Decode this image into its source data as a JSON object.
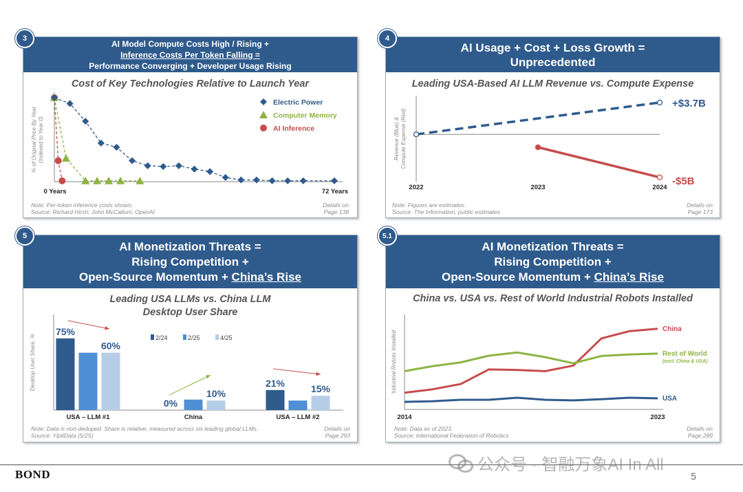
{
  "panels": {
    "p3": {
      "badge": "3",
      "header_lines": [
        "AI Model Compute Costs High / Rising +",
        "Inference Costs Per Token Falling =",
        "Performance Converging + Developer Usage Rising"
      ],
      "subtitle": "Cost of Key Technologies Relative to Launch Year",
      "note_lines": [
        "Note: Per-token inference costs shown.",
        "Source: Richard Hirsh; John McCallum; OpenAI"
      ],
      "details_lines": [
        "Details on",
        "Page 138"
      ]
    },
    "p4": {
      "badge": "4",
      "header_lines": [
        "AI Usage + Cost + Loss Growth =",
        "Unprecedented"
      ],
      "subtitle": "Leading USA-Based AI LLM Revenue vs. Compute Expense",
      "note_lines": [
        "Note: Figures are estimates.",
        "Source: The Information, public estimates"
      ],
      "details_lines": [
        "Details on",
        "Page 173"
      ]
    },
    "p5": {
      "badge": "5",
      "header_lines": [
        "AI Monetization Threats =",
        "Rising Competition +",
        "Open-Source Momentum + ",
        "China’s Rise"
      ],
      "subtitle_lines": [
        "Leading USA LLMs vs. China LLM",
        "Desktop User Share"
      ],
      "note_lines": [
        "Note: Data is non-deduped. Share is relative, measured across six leading global LLMs.",
        "Source: YipitData (5/25)"
      ],
      "details_lines": [
        "Details on",
        "Page 293"
      ]
    },
    "p51": {
      "badge": "5.1",
      "header_lines": [
        "AI Monetization Threats =",
        "Rising Competition +",
        "Open-Source Momentum + ",
        "China’s Rise"
      ],
      "subtitle": "China vs. USA vs. Rest of World Industrial Robots Installed",
      "note_lines": [
        "Note: Data as of 2023.",
        "Source: International Federation of Robotics"
      ],
      "details_lines": [
        "Details on",
        "Page 289"
      ]
    }
  },
  "chart_data": [
    {
      "type": "scatter",
      "title": "Cost of Key Technologies Relative to Launch Year",
      "ylabel": "% of Original Price By Year (Indexed to Year 0)",
      "x_tick_labels": [
        "0 Years",
        "72 Years"
      ],
      "xlim": [
        0,
        72
      ],
      "ylim": [
        0,
        100
      ],
      "series": [
        {
          "name": "Electric Power",
          "color": "#2f5b8c",
          "marker": "diamond",
          "x": [
            0,
            4,
            8,
            12,
            16,
            20,
            24,
            28,
            32,
            36,
            40,
            44,
            48,
            52,
            56,
            60,
            64,
            72
          ],
          "y": [
            100,
            93,
            72,
            46,
            41,
            25,
            19,
            18,
            19,
            15,
            12,
            5,
            2,
            2,
            1,
            1,
            1,
            1
          ]
        },
        {
          "name": "Computer Memory",
          "color": "#8db443",
          "marker": "triangle",
          "x": [
            0,
            3,
            8,
            11,
            14,
            17,
            22
          ],
          "y": [
            100,
            28,
            1,
            1,
            1,
            1,
            1
          ]
        },
        {
          "name": "AI Inference",
          "color": "#c74c4c",
          "marker": "circle",
          "x": [
            0,
            1,
            2
          ],
          "y": [
            100,
            25,
            1
          ]
        }
      ]
    },
    {
      "type": "line",
      "title": "Leading USA-Based AI LLM Revenue vs. Compute Expense",
      "ylabel": "Revenue (Blue) & Compute Expense (Red)",
      "x_tick_labels": [
        "2022",
        "2023",
        "2024"
      ],
      "xlim": [
        2022,
        2024
      ],
      "ylim": [
        -5.5,
        4.5
      ],
      "series": [
        {
          "color": "#2f5b8c",
          "style": "dashed",
          "x": [
            2022,
            2024
          ],
          "y": [
            0,
            3.7
          ],
          "end_label": "+$3.7B"
        },
        {
          "color": "#c74c4c",
          "style": "solid",
          "x": [
            2023,
            2024
          ],
          "y": [
            -1.5,
            -5
          ],
          "end_label": "-$5B"
        }
      ]
    },
    {
      "type": "bar",
      "title": "Leading USA LLMs vs. China LLM Desktop User Share",
      "ylabel": "Desktop User Share, %",
      "ylim": [
        0,
        100
      ],
      "categories": [
        "USA – LLM #1",
        "China",
        "USA – LLM #2"
      ],
      "series": [
        {
          "name": "2/24",
          "color": "#2f5b8c",
          "values": [
            75,
            0,
            21
          ]
        },
        {
          "name": "2/25",
          "color": "#4f8fd6",
          "values": [
            60,
            11,
            10
          ]
        },
        {
          "name": "4/25",
          "color": "#b6cde8",
          "values": [
            60,
            10,
            15
          ]
        }
      ],
      "data_labels": [
        {
          "category": "USA – LLM #1",
          "series": "2/24",
          "text": "75%"
        },
        {
          "category": "USA – LLM #1",
          "series": "4/25",
          "text": "60%"
        },
        {
          "category": "China",
          "series": "2/24",
          "text": "0%"
        },
        {
          "category": "China",
          "series": "4/25",
          "text": "10%"
        },
        {
          "category": "USA – LLM #2",
          "series": "2/24",
          "text": "21%"
        },
        {
          "category": "USA – LLM #2",
          "series": "4/25",
          "text": "15%"
        }
      ]
    },
    {
      "type": "line",
      "title": "China vs. USA vs. Rest of World Industrial Robots Installed",
      "ylabel": "Industrial Robots Installed",
      "x_tick_labels": [
        "2014",
        "2023"
      ],
      "x": [
        2014,
        2015,
        2016,
        2017,
        2018,
        2019,
        2020,
        2021,
        2022,
        2023
      ],
      "ylim": [
        0,
        325
      ],
      "series": [
        {
          "name": "China",
          "color": "#c74c4c",
          "values": [
            57,
            69,
            87,
            137,
            135,
            131,
            150,
            243,
            268,
            276
          ]
        },
        {
          "name": "Rest of World",
          "sublabel": "(excl. China & USA)",
          "color": "#8db443",
          "values": [
            131,
            148,
            161,
            184,
            195,
            179,
            158,
            183,
            188,
            191
          ]
        },
        {
          "name": "USA",
          "color": "#2f5b8c",
          "values": [
            26,
            28,
            33,
            33,
            40,
            33,
            31,
            35,
            40,
            38
          ]
        }
      ]
    }
  ],
  "footer": {
    "brand": "BOND",
    "page": "5",
    "watermark": "公众号 · 智融万象AI In All"
  }
}
